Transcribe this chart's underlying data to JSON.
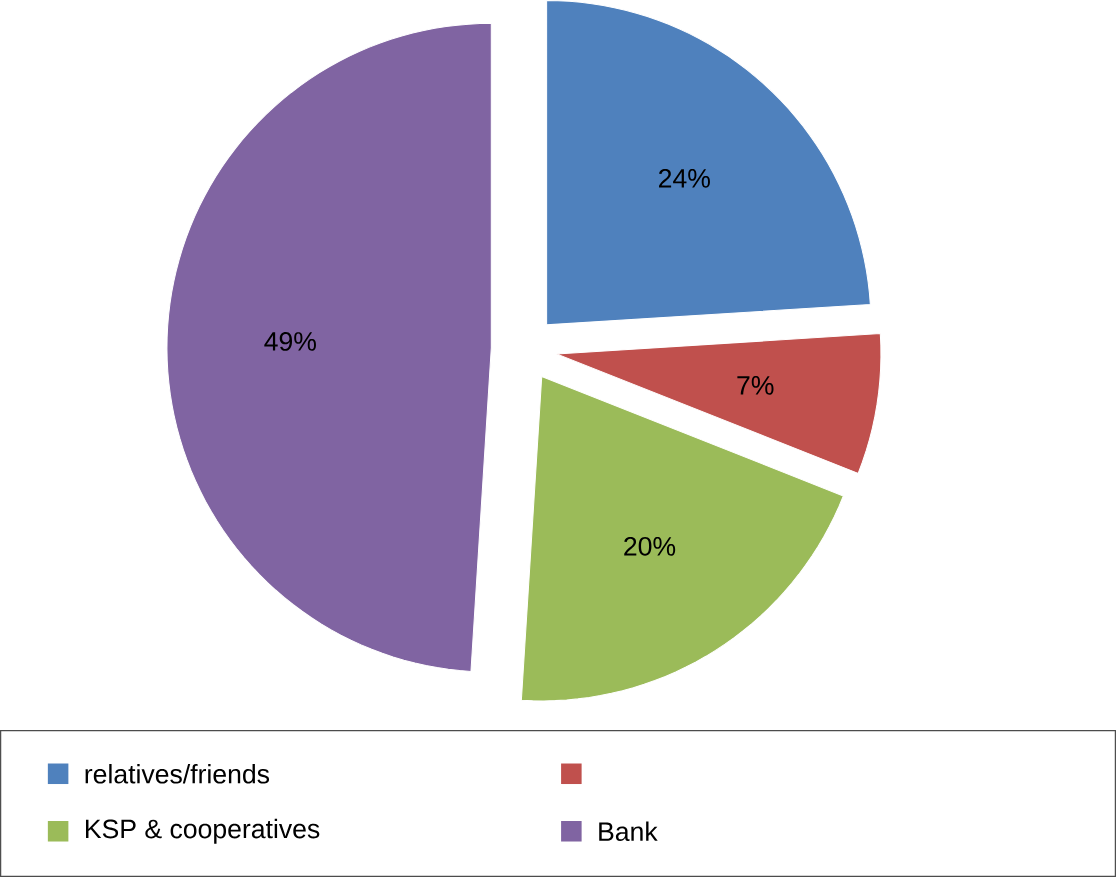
{
  "chart_data": {
    "type": "pie",
    "categories": [
      "relatives/friends",
      null,
      "KSP & cooperatives",
      "Bank"
    ],
    "values": [
      24,
      7,
      20,
      49
    ],
    "value_labels": [
      "24%",
      "7%",
      "20%",
      "49%"
    ],
    "colors": [
      "#4f81bd",
      "#c0504d",
      "#9bbb59",
      "#8064a2"
    ],
    "legend": "bottom"
  }
}
